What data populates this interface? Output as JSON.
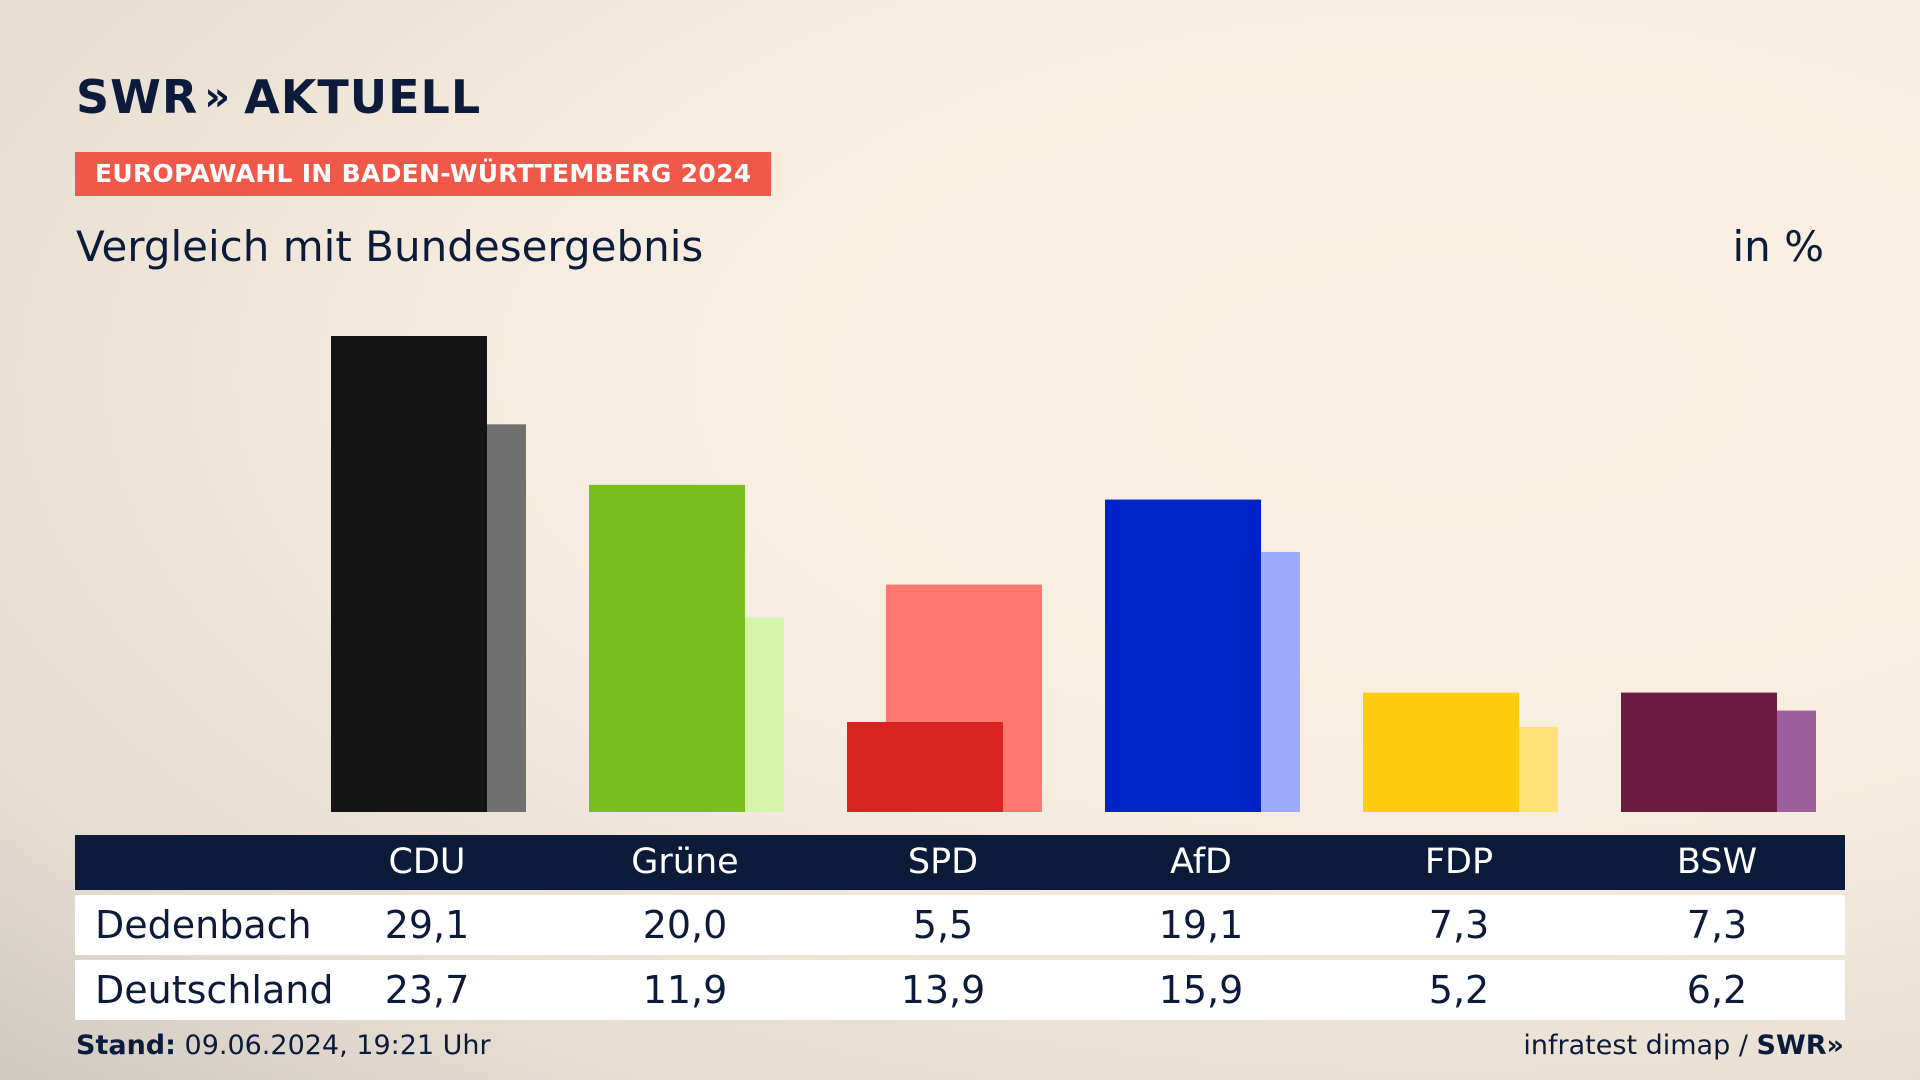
{
  "brand": {
    "name": "SWR",
    "chevrons": "»",
    "product": "AKTUELL"
  },
  "tag": "EUROPAWAHL IN BADEN-WÜRTTEMBERG 2024",
  "subtitle": "Vergleich mit Bundesergebnis",
  "unit": "in %",
  "footer": {
    "stand_label": "Stand:",
    "stand_value": "09.06.2024, 19:21 Uhr",
    "source": "infratest dimap /",
    "source_brand": "SWR»"
  },
  "chart_data": {
    "type": "bar",
    "unit": "%",
    "categories": [
      "CDU",
      "Grüne",
      "SPD",
      "AfD",
      "FDP",
      "BSW"
    ],
    "series": [
      {
        "name": "Dedenbach",
        "values": [
          29.1,
          20.0,
          5.5,
          19.1,
          7.3,
          7.3
        ]
      },
      {
        "name": "Deutschland",
        "values": [
          23.7,
          11.9,
          13.9,
          15.9,
          5.2,
          6.2
        ]
      }
    ],
    "colors": {
      "primary": [
        "#141414",
        "#79be1f",
        "#d72322",
        "#0023c8",
        "#ffcc0f",
        "#6b1a40"
      ],
      "secondary": [
        "#717171",
        "#d6f5ac",
        "#ff776f",
        "#9eaafe",
        "#ffe275",
        "#9d5e9c"
      ]
    },
    "ylim": [
      0,
      29.1
    ]
  },
  "table": {
    "rows": [
      {
        "label": "Dedenbach",
        "values": [
          "29,1",
          "20,0",
          "5,5",
          "19,1",
          "7,3",
          "7,3"
        ]
      },
      {
        "label": "Deutschland",
        "values": [
          "23,7",
          "11,9",
          "13,9",
          "15,9",
          "5,2",
          "6,2"
        ]
      }
    ]
  }
}
